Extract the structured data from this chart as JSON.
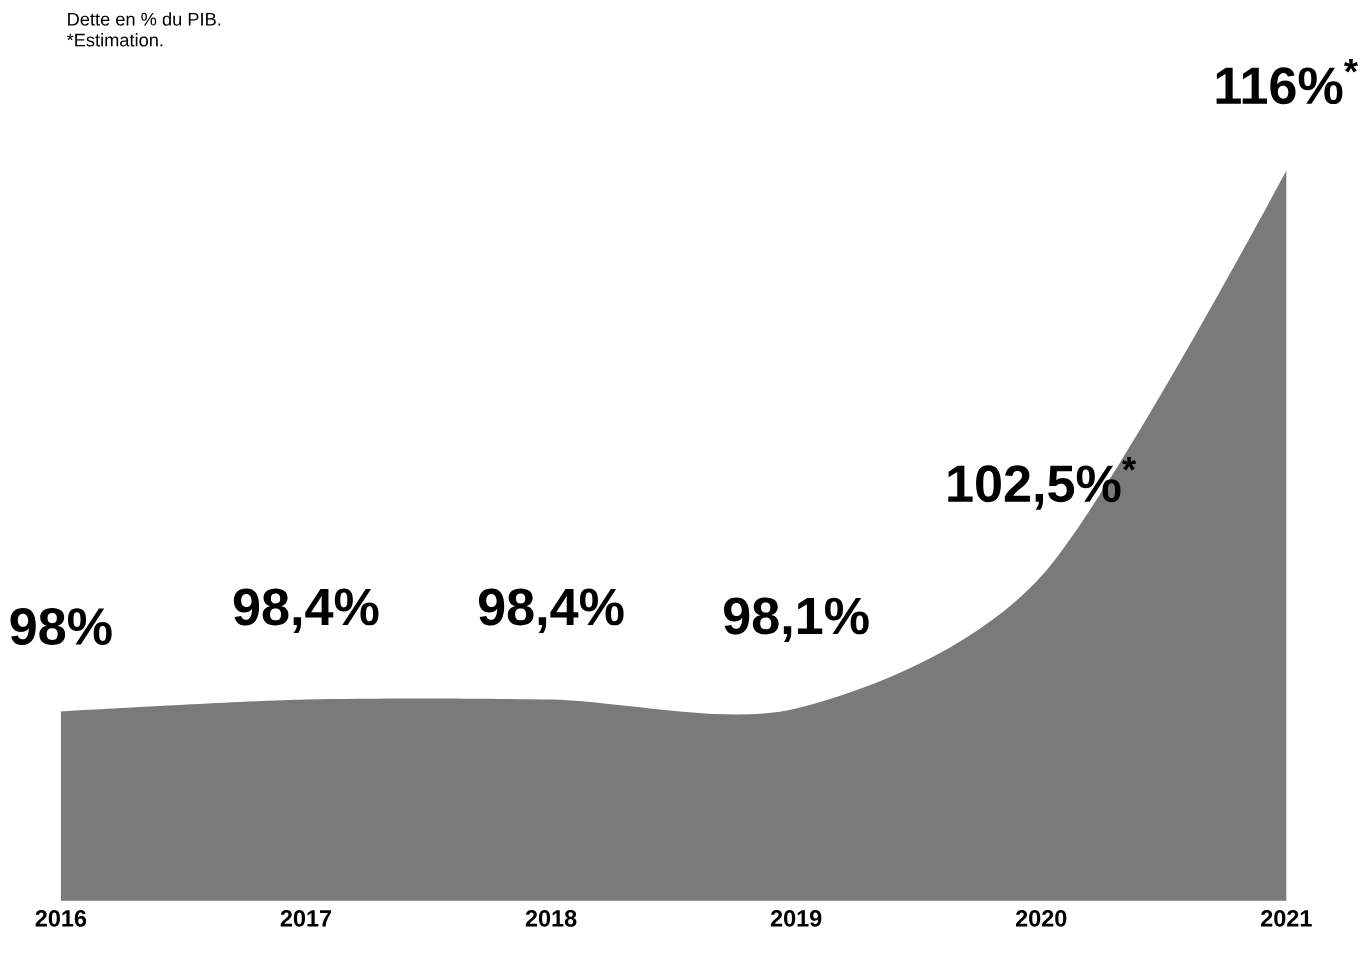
{
  "chart_data": {
    "type": "area",
    "annotations": [
      "Dette en % du PIB.",
      "*Estimation."
    ],
    "categories": [
      "2016",
      "2017",
      "2018",
      "2019",
      "2020",
      "2021"
    ],
    "values": [
      98,
      98.4,
      98.4,
      98.1,
      102.5,
      116
    ],
    "value_labels": [
      "98%",
      "98,4%",
      "98,4%",
      "98,1%",
      "102,5%$^{*}$",
      "116%$^{*}$"
    ],
    "color": "#7a7a7a",
    "tick_labels": "x"
  }
}
